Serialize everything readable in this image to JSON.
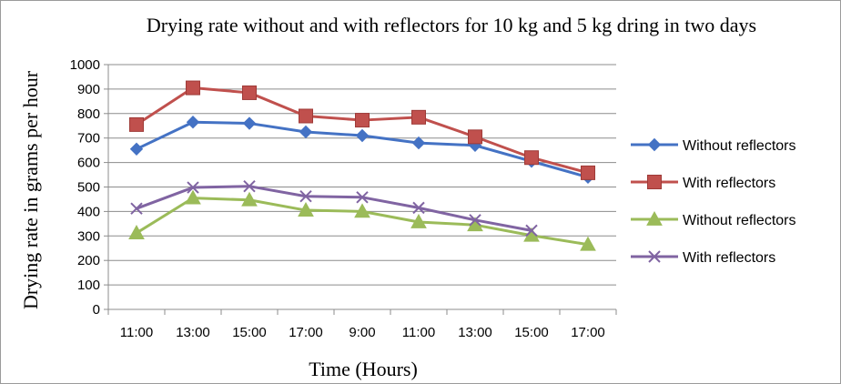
{
  "chart_data": {
    "type": "line",
    "title": "Drying rate without and with reflectors for 10 kg and 5 kg dring in two days",
    "xlabel": "Time (Hours)",
    "ylabel": "Drying rate in grams per hour",
    "categories": [
      "11:00",
      "13:00",
      "15:00",
      "17:00",
      "9:00",
      "11:00",
      "13:00",
      "15:00",
      "17:00"
    ],
    "ylim": [
      0,
      1000
    ],
    "yticks": [
      0,
      100,
      200,
      300,
      400,
      500,
      600,
      700,
      800,
      900,
      1000
    ],
    "grid": true,
    "legend": "right",
    "series": [
      {
        "name": "Without reflectors",
        "color": "#4472C4",
        "marker": "diamond",
        "values": [
          655,
          765,
          760,
          725,
          710,
          680,
          670,
          605,
          540
        ]
      },
      {
        "name": "With reflectors",
        "color": "#C0504D",
        "marker": "square",
        "values": [
          755,
          905,
          885,
          790,
          773,
          785,
          705,
          620,
          558
        ]
      },
      {
        "name": "Without reflectors",
        "color": "#9BBB59",
        "marker": "triangle",
        "values": [
          312,
          455,
          447,
          405,
          400,
          357,
          345,
          302,
          265
        ]
      },
      {
        "name": "With reflectors",
        "color": "#8064A2",
        "marker": "x",
        "values": [
          412,
          498,
          503,
          462,
          458,
          415,
          365,
          322,
          null
        ]
      }
    ]
  }
}
